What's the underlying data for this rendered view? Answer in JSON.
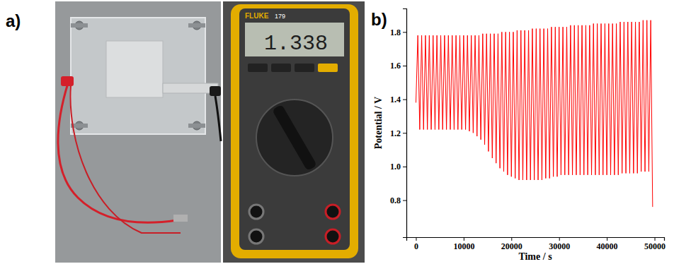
{
  "panel_labels": [
    "a)",
    "b)"
  ],
  "photo": {
    "brand": "FLUKE",
    "model": "179",
    "display": "1.338"
  },
  "chart_data": {
    "type": "line",
    "x_label": "Time / s",
    "y_label": "Potential / V",
    "color": "#ff0000",
    "xlim": [
      -2000,
      52000
    ],
    "xticks": [
      0,
      10000,
      20000,
      30000,
      40000,
      50000
    ],
    "ylim": [
      0.58,
      1.94
    ],
    "yticks": [
      0.8,
      {
        "value": 1,
        "label": "1.0"
      },
      1.2,
      1.4,
      1.6,
      1.8
    ],
    "x": [
      0,
      400,
      800,
      1200,
      1600,
      2000,
      2400,
      2800,
      3200,
      3600,
      4000,
      4400,
      4800,
      5200,
      5600,
      6000,
      6400,
      6800,
      7200,
      7600,
      8000,
      8400,
      8800,
      9200,
      9600,
      10000,
      10400,
      10800,
      11200,
      11600,
      12000,
      12400,
      12800,
      13200,
      13600,
      14000,
      14400,
      14800,
      15200,
      15600,
      16000,
      16400,
      16800,
      17200,
      17600,
      18000,
      18400,
      18800,
      19200,
      19600,
      20000,
      20400,
      20800,
      21200,
      21600,
      22000,
      22400,
      22800,
      23200,
      23600,
      24000,
      24400,
      24800,
      25200,
      25600,
      26000,
      26400,
      26800,
      27200,
      27600,
      28000,
      28400,
      28800,
      29200,
      29600,
      30000,
      30400,
      30800,
      31200,
      31600,
      32000,
      32400,
      32800,
      33200,
      33600,
      34000,
      34400,
      34800,
      35200,
      35600,
      36000,
      36400,
      36800,
      37200,
      37600,
      38000,
      38400,
      38800,
      39200,
      39600,
      40000,
      40400,
      40800,
      41200,
      41600,
      42000,
      42400,
      42800,
      43200,
      43600,
      44000,
      44400,
      44800,
      45200,
      45600,
      46000,
      46400,
      46800,
      47200,
      47600,
      48000,
      48400,
      48800,
      49200,
      49600
    ],
    "values": [
      1.38,
      1.78,
      1.22,
      1.78,
      1.22,
      1.78,
      1.22,
      1.78,
      1.22,
      1.78,
      1.22,
      1.78,
      1.22,
      1.78,
      1.22,
      1.78,
      1.22,
      1.78,
      1.22,
      1.78,
      1.22,
      1.78,
      1.22,
      1.78,
      1.22,
      1.78,
      1.22,
      1.78,
      1.21,
      1.78,
      1.2,
      1.78,
      1.18,
      1.78,
      1.16,
      1.79,
      1.13,
      1.79,
      1.09,
      1.79,
      1.05,
      1.79,
      1.02,
      1.79,
      0.99,
      1.8,
      0.97,
      1.8,
      0.95,
      1.8,
      0.94,
      1.8,
      0.93,
      1.81,
      0.92,
      1.81,
      0.92,
      1.81,
      0.92,
      1.81,
      0.92,
      1.82,
      0.92,
      1.82,
      0.92,
      1.82,
      0.92,
      1.82,
      0.93,
      1.82,
      0.93,
      1.83,
      0.94,
      1.83,
      0.94,
      1.83,
      0.95,
      1.83,
      0.95,
      1.83,
      0.95,
      1.84,
      0.95,
      1.84,
      0.95,
      1.84,
      0.95,
      1.84,
      0.95,
      1.84,
      0.95,
      1.84,
      0.95,
      1.85,
      0.95,
      1.85,
      0.95,
      1.85,
      0.95,
      1.85,
      0.95,
      1.85,
      0.95,
      1.85,
      0.95,
      1.85,
      0.95,
      1.86,
      0.96,
      1.86,
      0.96,
      1.86,
      0.96,
      1.86,
      0.96,
      1.86,
      0.96,
      1.86,
      0.97,
      1.87,
      0.97,
      1.87,
      0.97,
      1.87,
      0.76
    ]
  }
}
